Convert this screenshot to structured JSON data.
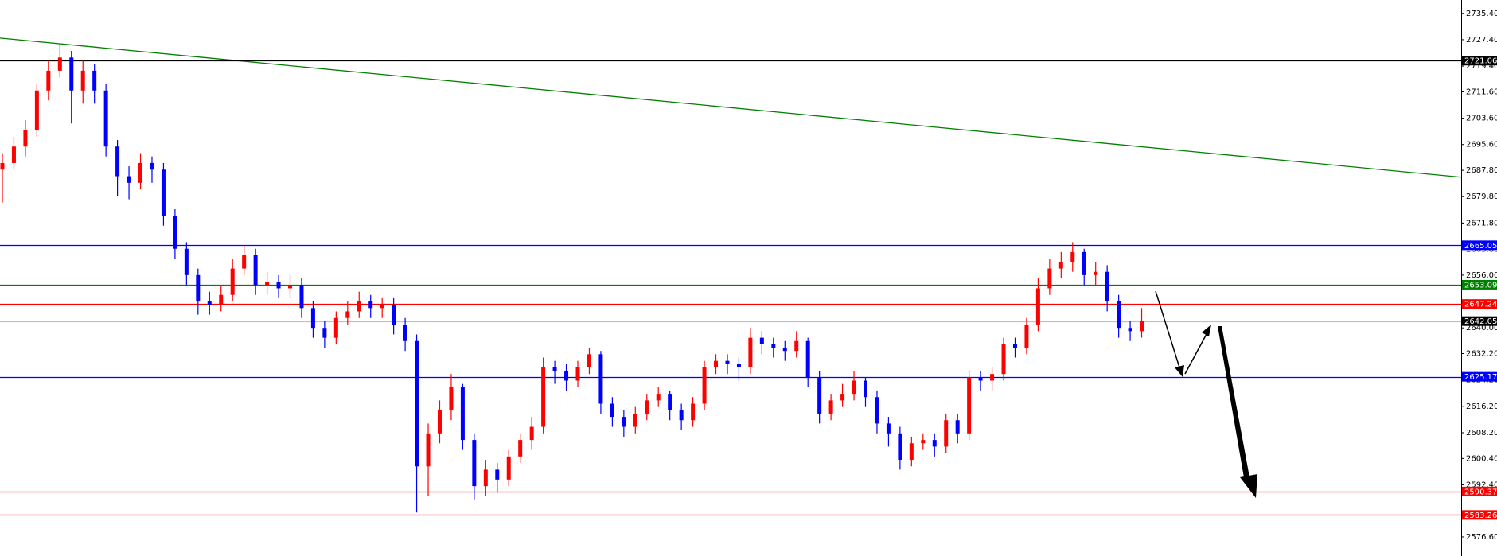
{
  "chart_data": {
    "type": "candlestick",
    "ylim": [
      2570.8,
      2739.45
    ],
    "yticks": [
      {
        "value": 2735.4,
        "label": "2735.40"
      },
      {
        "value": 2727.4,
        "label": "2727.40"
      },
      {
        "value": 2719.4,
        "label": "2719.40"
      },
      {
        "value": 2711.6,
        "label": "2711.60"
      },
      {
        "value": 2703.6,
        "label": "2703.60"
      },
      {
        "value": 2695.6,
        "label": "2695.60"
      },
      {
        "value": 2687.8,
        "label": "2687.80"
      },
      {
        "value": 2679.8,
        "label": "2679.80"
      },
      {
        "value": 2671.8,
        "label": "2671.80"
      },
      {
        "value": 2663.8,
        "label": "2663.80"
      },
      {
        "value": 2656,
        "label": "2656.00"
      },
      {
        "value": 2640,
        "label": "2640.00"
      },
      {
        "value": 2632.2,
        "label": "2632.20"
      },
      {
        "value": 2624.2,
        "label": "2624.20"
      },
      {
        "value": 2616.2,
        "label": "2616.20"
      },
      {
        "value": 2608.2,
        "label": "2608.20"
      },
      {
        "value": 2600.4,
        "label": "2600.40"
      },
      {
        "value": 2592.4,
        "label": "2592.40"
      },
      {
        "value": 2576.6,
        "label": "2576.60"
      }
    ],
    "up_color": "#ff0000",
    "down_color": "#0000ff",
    "open": [
      2688,
      2690,
      2695,
      2700,
      2712,
      2718,
      2722,
      2712,
      2718,
      2712,
      2695,
      2686,
      2684,
      2690,
      2688,
      2674,
      2664,
      2656,
      2648,
      2647,
      2650,
      2658,
      2662,
      2653,
      2654,
      2652,
      2653,
      2646,
      2640,
      2637,
      2643,
      2645,
      2648,
      2646,
      2647,
      2641,
      2636,
      2598,
      2608,
      2615,
      2622,
      2606,
      2592,
      2597,
      2594,
      2601,
      2606,
      2610,
      2628,
      2627,
      2624,
      2628,
      2632,
      2617,
      2613,
      2610,
      2614,
      2618,
      2620,
      2615,
      2612,
      2617,
      2628,
      2630,
      2629,
      2628,
      2637,
      2635,
      2634,
      2633,
      2636,
      2625,
      2614,
      2618,
      2620,
      2624,
      2619,
      2611,
      2608,
      2600,
      2605,
      2606,
      2604,
      2612,
      2608,
      2625,
      2624,
      2626,
      2635,
      2634,
      2641,
      2652,
      2658,
      2660,
      2663,
      2656,
      2657,
      2648,
      2640,
      2639
    ],
    "high": [
      2693,
      2698,
      2703,
      2714,
      2721,
      2726,
      2724,
      2721,
      2720,
      2714,
      2697,
      2689,
      2693,
      2692,
      2690,
      2676,
      2666,
      2658,
      2651,
      2653,
      2661,
      2665,
      2664,
      2657,
      2656,
      2656,
      2655,
      2648,
      2642,
      2645,
      2648,
      2651,
      2650,
      2649,
      2649,
      2643,
      2638,
      2611,
      2618,
      2626,
      2623,
      2608,
      2600,
      2599,
      2603,
      2608,
      2613,
      2631,
      2630,
      2629,
      2630,
      2634,
      2633,
      2619,
      2615,
      2616,
      2620,
      2622,
      2621,
      2617,
      2619,
      2630,
      2632,
      2632,
      2631,
      2640,
      2639,
      2637,
      2636,
      2639,
      2637,
      2627,
      2620,
      2623,
      2627,
      2625,
      2621,
      2613,
      2610,
      2607,
      2608,
      2608,
      2614,
      2614,
      2627,
      2627,
      2628,
      2637,
      2637,
      2643,
      2655,
      2661,
      2663,
      2666,
      2664,
      2660,
      2659,
      2650,
      2642,
      2646
    ],
    "low": [
      2678,
      2688,
      2692,
      2698,
      2709,
      2716,
      2702,
      2708,
      2708,
      2692,
      2680,
      2679,
      2682,
      2684,
      2671,
      2661,
      2653,
      2644,
      2644,
      2645,
      2648,
      2656,
      2650,
      2650,
      2649,
      2649,
      2643,
      2637,
      2634,
      2635,
      2641,
      2643,
      2643,
      2643,
      2638,
      2633,
      2584,
      2589,
      2605,
      2612,
      2603,
      2588,
      2589,
      2590,
      2592,
      2599,
      2603,
      2608,
      2623,
      2621,
      2622,
      2626,
      2614,
      2610,
      2607,
      2608,
      2612,
      2616,
      2612,
      2609,
      2610,
      2615,
      2626,
      2626,
      2624,
      2626,
      2632,
      2631,
      2630,
      2631,
      2622,
      2611,
      2612,
      2616,
      2618,
      2616,
      2608,
      2604,
      2597,
      2598,
      2603,
      2601,
      2602,
      2605,
      2606,
      2621,
      2621,
      2624,
      2631,
      2632,
      2639,
      2650,
      2655,
      2657,
      2653,
      2653,
      2645,
      2637,
      2636,
      2637
    ],
    "close": [
      2690,
      2695,
      2700,
      2712,
      2718,
      2722,
      2712,
      2718,
      2712,
      2695,
      2686,
      2684,
      2690,
      2688,
      2674,
      2664,
      2656,
      2648,
      2647,
      2650,
      2658,
      2662,
      2653,
      2654,
      2652,
      2653,
      2646,
      2640,
      2637,
      2643,
      2645,
      2648,
      2646,
      2647,
      2641,
      2636,
      2598,
      2608,
      2615,
      2622,
      2606,
      2592,
      2597,
      2594,
      2601,
      2606,
      2610,
      2628,
      2627,
      2624,
      2628,
      2632,
      2617,
      2613,
      2610,
      2614,
      2618,
      2620,
      2615,
      2612,
      2617,
      2628,
      2630,
      2629,
      2628,
      2637,
      2635,
      2634,
      2633,
      2636,
      2625,
      2614,
      2618,
      2620,
      2624,
      2619,
      2611,
      2608,
      2600,
      2605,
      2606,
      2604,
      2612,
      2608,
      2625,
      2624,
      2626,
      2635,
      2634,
      2641,
      2652,
      2658,
      2660,
      2663,
      2656,
      2657,
      2648,
      2640,
      2639,
      2642
    ],
    "trendline": {
      "color": "#008000",
      "values": [
        2727.9,
        2685.7
      ]
    },
    "levels": [
      {
        "value": 2721.06,
        "color": "#000000"
      },
      {
        "value": 2665.05,
        "color": "#0000ff"
      },
      {
        "value": 2653.09,
        "color": "#008000"
      },
      {
        "value": 2647.24,
        "color": "#ff0000"
      },
      {
        "value": 2642.05,
        "color": "#c0c0c0",
        "label_color": "#000000"
      },
      {
        "value": 2625.17,
        "color": "#0000ff"
      },
      {
        "value": 2590.37,
        "color": "#ff0000"
      },
      {
        "value": 2583.26,
        "color": "#ff0000"
      }
    ]
  }
}
